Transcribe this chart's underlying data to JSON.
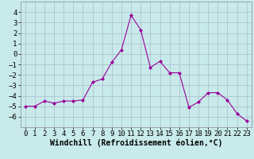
{
  "x": [
    0,
    1,
    2,
    3,
    4,
    5,
    6,
    7,
    8,
    9,
    10,
    11,
    12,
    13,
    14,
    15,
    16,
    17,
    18,
    19,
    20,
    21,
    22,
    23
  ],
  "y": [
    -5.0,
    -5.0,
    -4.5,
    -4.7,
    -4.5,
    -4.5,
    -4.4,
    -2.7,
    -2.4,
    -0.8,
    0.4,
    3.7,
    2.3,
    -1.3,
    -0.7,
    -1.8,
    -1.8,
    -5.1,
    -4.6,
    -3.7,
    -3.7,
    -4.4,
    -5.7,
    -6.4
  ],
  "line_color": "#990099",
  "marker": "D",
  "marker_size": 2,
  "bg_color": "#c8eaea",
  "grid_color": "#aabbcc",
  "xlabel": "Windchill (Refroidissement éolien,°C)",
  "xlim": [
    -0.5,
    23.5
  ],
  "ylim": [
    -7,
    5
  ],
  "yticks": [
    -6,
    -5,
    -4,
    -3,
    -2,
    -1,
    0,
    1,
    2,
    3,
    4
  ],
  "xticks": [
    0,
    1,
    2,
    3,
    4,
    5,
    6,
    7,
    8,
    9,
    10,
    11,
    12,
    13,
    14,
    15,
    16,
    17,
    18,
    19,
    20,
    21,
    22,
    23
  ],
  "xlabel_fontsize": 7,
  "tick_fontsize": 6.5
}
